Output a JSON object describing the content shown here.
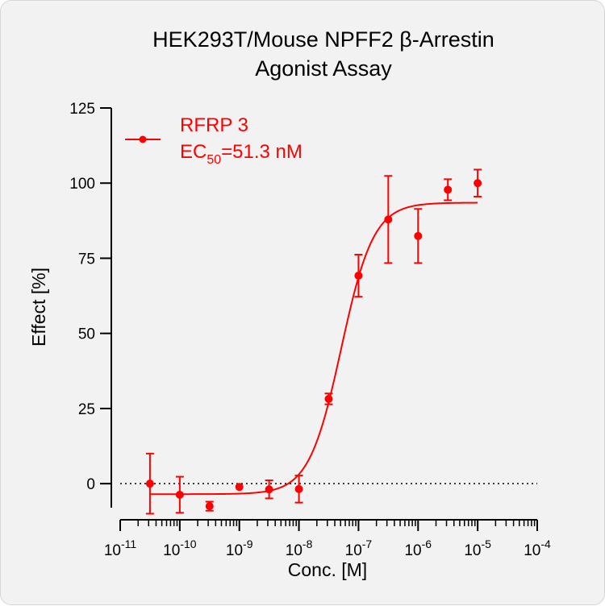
{
  "chart_data": {
    "type": "scatter",
    "title_line1": "HEK293T/Mouse NPFF2 β-Arrestin",
    "title_line2": "Agonist Assay",
    "xlabel": "Conc. [M]",
    "ylabel": "Effect  [%]",
    "x_scale": "log",
    "xlim": [
      1e-11,
      0.0001
    ],
    "ylim": [
      -8,
      125
    ],
    "yticks": [
      0,
      25,
      50,
      75,
      100,
      125
    ],
    "xticks": [
      {
        "value": 1e-11,
        "base": "10",
        "exp": "-11"
      },
      {
        "value": 1e-10,
        "base": "10",
        "exp": "-10"
      },
      {
        "value": 1e-09,
        "base": "10",
        "exp": "-9"
      },
      {
        "value": 1e-08,
        "base": "10",
        "exp": "-8"
      },
      {
        "value": 1e-07,
        "base": "10",
        "exp": "-7"
      },
      {
        "value": 1e-06,
        "base": "10",
        "exp": "-6"
      },
      {
        "value": 1e-05,
        "base": "10",
        "exp": "-5"
      },
      {
        "value": 0.0001,
        "base": "10",
        "exp": "-4"
      }
    ],
    "reference_line": 0,
    "series": [
      {
        "name": "RFRP 3",
        "color": "#ff0000",
        "points": [
          {
            "x": 3.16e-11,
            "y": 0,
            "err": 10
          },
          {
            "x": 1e-10,
            "y": -3.7,
            "err": 6
          },
          {
            "x": 3.16e-10,
            "y": -7.5,
            "err": 1.5
          },
          {
            "x": 1e-09,
            "y": -1.1,
            "err": 0
          },
          {
            "x": 3.16e-09,
            "y": -1.9,
            "err": 3
          },
          {
            "x": 1e-08,
            "y": -1.8,
            "err": 4.5
          },
          {
            "x": 3.16e-08,
            "y": 28.2,
            "err": 1.8
          },
          {
            "x": 1e-07,
            "y": 69.2,
            "err": 7
          },
          {
            "x": 3.16e-07,
            "y": 87.9,
            "err": 14.5
          },
          {
            "x": 1e-06,
            "y": 82.4,
            "err": 9
          },
          {
            "x": 3.16e-06,
            "y": 97.8,
            "err": 3.5
          },
          {
            "x": 1e-05,
            "y": 100,
            "err": 4.5
          }
        ],
        "fit": {
          "bottom": -3.5,
          "top": 93.5,
          "ec50": 5.13e-08,
          "hill": 1.6,
          "x_range": [
            3.16e-11,
            1e-05
          ]
        }
      }
    ],
    "legend": {
      "position": "top-left",
      "series_label": "RFRP 3",
      "ec_prefix": "EC",
      "ec_sub": "50",
      "ec_value": "=51.3 nM"
    }
  }
}
